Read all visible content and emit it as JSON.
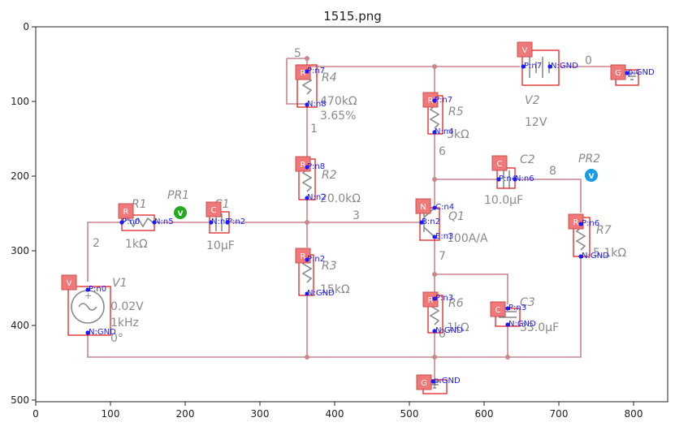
{
  "title": "1515.png",
  "axes": {
    "x_ticks": [
      "0",
      "100",
      "200",
      "300",
      "400",
      "500",
      "600",
      "700",
      "800"
    ],
    "y_ticks": [
      "0",
      "100",
      "200",
      "300",
      "400",
      "500"
    ]
  },
  "node_labels": {
    "n5": "5",
    "n1": "1",
    "n6": "6",
    "n0": "0",
    "n8": "8",
    "n3": "3",
    "n2": "2",
    "n7": "7",
    "n0b": "0"
  },
  "components": {
    "R4": {
      "name": "R4",
      "value": "470kΩ",
      "value2": "3.65%"
    },
    "R5": {
      "name": "R5",
      "value": "3kΩ"
    },
    "V2": {
      "name": "V2",
      "value": "12V"
    },
    "R2": {
      "name": "R2",
      "value": "20.0kΩ"
    },
    "C2": {
      "name": "C2",
      "value": "10.0µF"
    },
    "PR2": {
      "name": "PR2"
    },
    "R1": {
      "name": "R1",
      "value": "1kΩ"
    },
    "PR1": {
      "name": "PR1"
    },
    "C1": {
      "name": "C1",
      "value": "10µF"
    },
    "Q1": {
      "name": "Q1",
      "value": "100A/A"
    },
    "R7": {
      "name": "R7",
      "value": "5.1kΩ"
    },
    "R3": {
      "name": "R3",
      "value": "15kΩ"
    },
    "V1": {
      "name": "V1",
      "value": "0.02V",
      "value2": "1kHz",
      "value3": "0°"
    },
    "R6": {
      "name": "R6",
      "value": "1kΩ"
    },
    "C3": {
      "name": "C3",
      "value": "33.0µF"
    }
  },
  "badges": {
    "R4": "R",
    "R5": "R",
    "V2": "V",
    "G1": "G",
    "R2": "R",
    "C2": "C",
    "R1": "R",
    "C1": "C",
    "Q1": "N",
    "R7": "R",
    "R3": "R",
    "V1": "V",
    "R6": "R",
    "C3": "C",
    "G2": "G"
  },
  "pins": {
    "R4p": "P:n7",
    "R4n": "N:n8",
    "R5p": "P:n7",
    "R5n": "N:n4",
    "V2p": "P:n7",
    "V2n": "N:GND",
    "G1p": "p:GND",
    "R2p": "P:n8",
    "R2n": "N:n2",
    "C2p": "P:n4",
    "C2n": "N:n6",
    "R1p": "P:n0",
    "R1n": "N:n5",
    "C1p": "N:n5",
    "C1n": "P:n2",
    "Q1c": "C:n4",
    "Q1b": "B:n2",
    "Q1e": "E:n3",
    "R7p": "P:n6",
    "R7n": "N:GND",
    "R3p": "P:n2",
    "R3n": "N:GND",
    "V1p": "P:n0",
    "V1n": "N:GND",
    "R6p": "P:n3",
    "R6n": "N:GND",
    "C3p": "P:n3",
    "C3n": "N:GND",
    "G2p": "p:GND"
  },
  "probe_text": "V"
}
